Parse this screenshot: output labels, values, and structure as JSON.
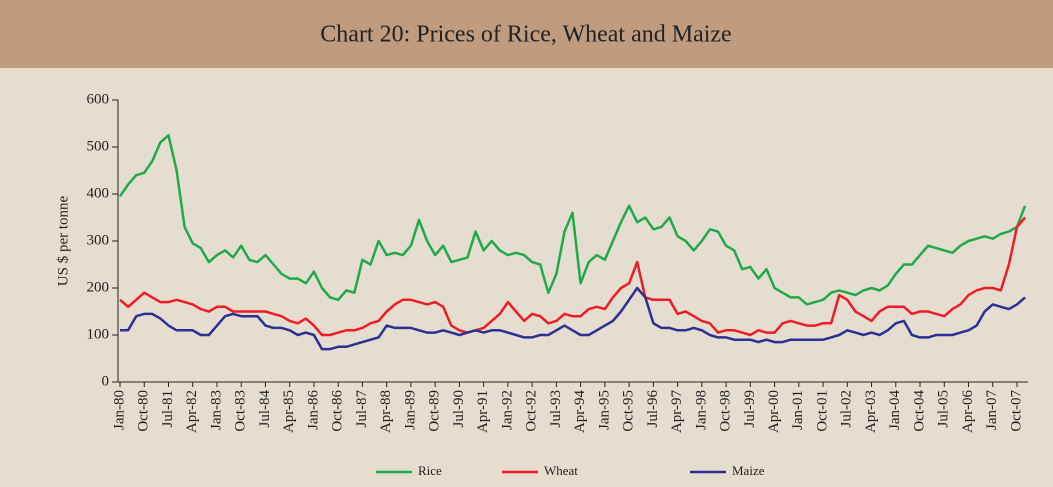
{
  "chart_data": {
    "type": "line",
    "title": "Chart 20: Prices of Rice, Wheat and Maize",
    "y_label": "US $ per tonne",
    "categories": [
      "Jan-80",
      null,
      null,
      "Oct-80",
      null,
      null,
      "Jul-81",
      null,
      null,
      "Apr-82",
      null,
      null,
      "Jan-83",
      null,
      null,
      "Oct-83",
      null,
      null,
      "Jul-84",
      null,
      null,
      "Apr-85",
      null,
      null,
      "Jan-86",
      null,
      null,
      "Oct-86",
      null,
      null,
      "Jul-87",
      null,
      null,
      "Apr-88",
      null,
      null,
      "Jan-89",
      null,
      null,
      "Oct-89",
      null,
      null,
      "Jul-90",
      null,
      null,
      "Apr-91",
      null,
      null,
      "Jan-92",
      null,
      null,
      "Oct-92",
      null,
      null,
      "Jul-93",
      null,
      null,
      "Apr-94",
      null,
      null,
      "Jan-95",
      null,
      null,
      "Oct-95",
      null,
      null,
      "Jul-96",
      null,
      null,
      "Apr-97",
      null,
      null,
      "Jan-98",
      null,
      null,
      "Oct-98",
      null,
      null,
      "Jul-99",
      null,
      null,
      "Apr-00",
      null,
      null,
      "Jan-01",
      null,
      null,
      "Oct-01",
      null,
      null,
      "Jul-02",
      null,
      null,
      "Apr-03",
      null,
      null,
      "Jan-04",
      null,
      null,
      "Oct-04",
      null,
      null,
      "Jul-05",
      null,
      null,
      "Apr-06",
      null,
      null,
      "Jan-07",
      null,
      null,
      "Oct-07",
      null
    ],
    "series": [
      {
        "name": "Rice",
        "color": "#1faa4a",
        "values": [
          395,
          420,
          440,
          445,
          470,
          510,
          525,
          450,
          330,
          295,
          285,
          255,
          270,
          280,
          265,
          290,
          260,
          255,
          270,
          250,
          230,
          220,
          220,
          210,
          235,
          200,
          180,
          175,
          195,
          190,
          260,
          250,
          300,
          270,
          275,
          270,
          290,
          345,
          300,
          270,
          290,
          255,
          260,
          265,
          320,
          280,
          300,
          280,
          270,
          275,
          270,
          255,
          250,
          190,
          230,
          320,
          360,
          210,
          255,
          270,
          260,
          300,
          340,
          375,
          340,
          350,
          325,
          330,
          350,
          310,
          300,
          280,
          300,
          325,
          320,
          290,
          280,
          240,
          245,
          220,
          240,
          200,
          190,
          180,
          180,
          165,
          170,
          175,
          190,
          195,
          190,
          185,
          195,
          200,
          195,
          205,
          230,
          250,
          250,
          270,
          290,
          285,
          280,
          275,
          290,
          300,
          305,
          310,
          305,
          315,
          320,
          330,
          375
        ]
      },
      {
        "name": "Wheat",
        "color": "#ee1c25",
        "values": [
          175,
          160,
          175,
          190,
          180,
          170,
          170,
          175,
          170,
          165,
          155,
          150,
          160,
          160,
          150,
          150,
          150,
          150,
          150,
          145,
          140,
          130,
          125,
          135,
          120,
          100,
          100,
          105,
          110,
          110,
          115,
          125,
          130,
          150,
          165,
          175,
          175,
          170,
          165,
          170,
          160,
          120,
          110,
          105,
          110,
          115,
          130,
          145,
          170,
          150,
          130,
          145,
          140,
          125,
          130,
          145,
          140,
          140,
          155,
          160,
          155,
          180,
          200,
          210,
          255,
          180,
          175,
          175,
          175,
          145,
          150,
          140,
          130,
          125,
          105,
          110,
          110,
          105,
          100,
          110,
          105,
          105,
          125,
          130,
          125,
          120,
          120,
          125,
          125,
          185,
          175,
          150,
          140,
          130,
          150,
          160,
          160,
          160,
          145,
          150,
          150,
          145,
          140,
          155,
          165,
          185,
          195,
          200,
          200,
          195,
          250,
          330,
          350
        ]
      },
      {
        "name": "Maize",
        "color": "#2b3192",
        "values": [
          110,
          110,
          140,
          145,
          145,
          135,
          120,
          110,
          110,
          110,
          100,
          100,
          120,
          140,
          145,
          140,
          140,
          140,
          120,
          115,
          115,
          110,
          100,
          105,
          100,
          70,
          70,
          75,
          75,
          80,
          85,
          90,
          95,
          120,
          115,
          115,
          115,
          110,
          105,
          105,
          110,
          105,
          100,
          105,
          110,
          105,
          110,
          110,
          105,
          100,
          95,
          95,
          100,
          100,
          110,
          120,
          110,
          100,
          100,
          110,
          120,
          130,
          150,
          175,
          200,
          180,
          125,
          115,
          115,
          110,
          110,
          115,
          110,
          100,
          95,
          95,
          90,
          90,
          90,
          85,
          90,
          85,
          85,
          90,
          90,
          90,
          90,
          90,
          95,
          100,
          110,
          105,
          100,
          105,
          100,
          110,
          125,
          130,
          100,
          95,
          95,
          100,
          100,
          100,
          105,
          110,
          120,
          150,
          165,
          160,
          155,
          165,
          180
        ]
      }
    ],
    "ylim": [
      0,
      600
    ],
    "yticks": [
      0,
      100,
      200,
      300,
      400,
      500,
      600
    ],
    "legend": "bottom"
  }
}
